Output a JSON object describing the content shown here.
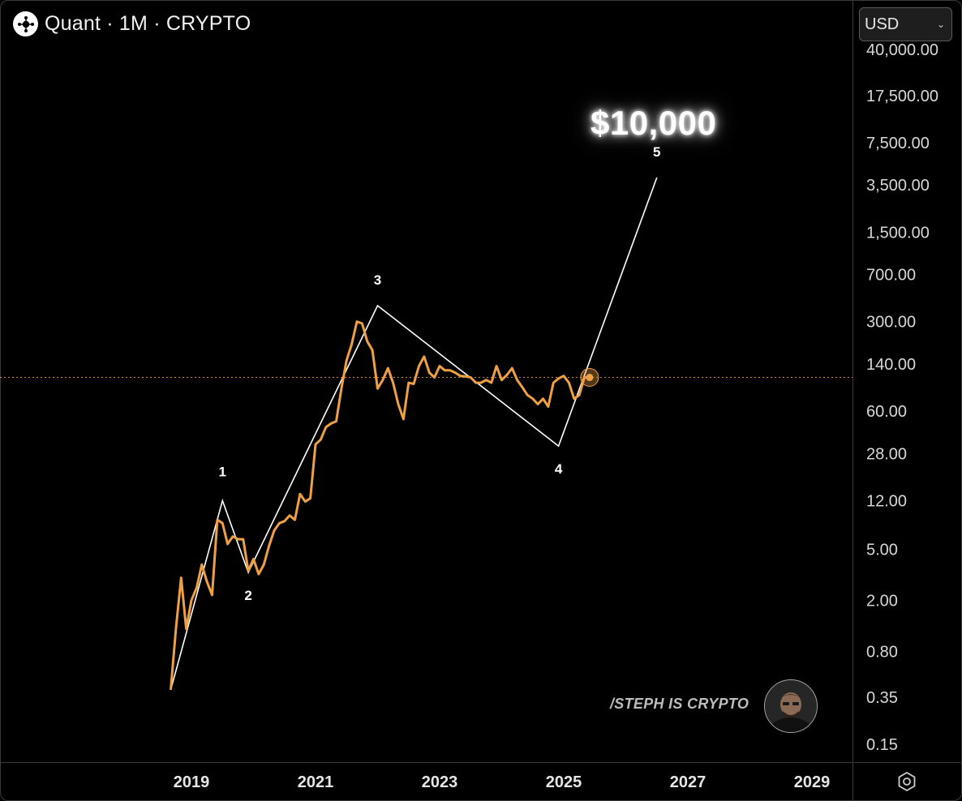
{
  "header": {
    "title": "Quant · 1M · CRYPTO",
    "logo_icon": "quant-logo-icon"
  },
  "currency_select": {
    "value": "USD"
  },
  "watermark": "/STEPH IS CRYPTO",
  "target_label": "$10,000",
  "chart_data": {
    "type": "line",
    "y_scale": "log",
    "x_ticks": [
      "2019",
      "2021",
      "2023",
      "2025",
      "2027",
      "2029"
    ],
    "y_ticks": [
      "40,000.00",
      "17,500.00",
      "7,500.00",
      "3,500.00",
      "1,500.00",
      "700.00",
      "300.00",
      "140.00",
      "60.00",
      "28.00",
      "12.00",
      "5.00",
      "2.00",
      "0.80",
      "0.35",
      "0.15"
    ],
    "current_price_line": 110,
    "series": [
      {
        "color": "#f0a044",
        "points": [
          [
            "2018-09",
            0.4
          ],
          [
            "2018-10",
            1.2
          ],
          [
            "2018-11",
            3.0
          ],
          [
            "2018-12",
            1.2
          ],
          [
            "2019-01",
            2.0
          ],
          [
            "2019-02",
            2.5
          ],
          [
            "2019-03",
            3.8
          ],
          [
            "2019-04",
            2.8
          ],
          [
            "2019-05",
            2.2
          ],
          [
            "2019-06",
            8.5
          ],
          [
            "2019-07",
            8.0
          ],
          [
            "2019-08",
            5.5
          ],
          [
            "2019-09",
            6.3
          ],
          [
            "2019-10",
            6.0
          ],
          [
            "2019-11",
            6.0
          ],
          [
            "2019-12",
            3.4
          ],
          [
            "2020-01",
            4.2
          ],
          [
            "2020-02",
            3.2
          ],
          [
            "2020-03",
            3.8
          ],
          [
            "2020-04",
            5.3
          ],
          [
            "2020-05",
            7.0
          ],
          [
            "2020-06",
            8.0
          ],
          [
            "2020-07",
            8.3
          ],
          [
            "2020-08",
            9.2
          ],
          [
            "2020-09",
            8.5
          ],
          [
            "2020-10",
            13.5
          ],
          [
            "2020-11",
            11.8
          ],
          [
            "2020-12",
            12.5
          ],
          [
            "2021-01",
            33
          ],
          [
            "2021-02",
            36
          ],
          [
            "2021-03",
            45
          ],
          [
            "2021-04",
            48
          ],
          [
            "2021-05",
            50
          ],
          [
            "2021-06",
            90
          ],
          [
            "2021-07",
            150
          ],
          [
            "2021-08",
            200
          ],
          [
            "2021-09",
            300
          ],
          [
            "2021-10",
            290
          ],
          [
            "2021-11",
            210
          ],
          [
            "2021-12",
            180
          ],
          [
            "2022-01",
            90
          ],
          [
            "2022-02",
            105
          ],
          [
            "2022-03",
            130
          ],
          [
            "2022-04",
            100
          ],
          [
            "2022-05",
            68
          ],
          [
            "2022-06",
            52
          ],
          [
            "2022-07",
            100
          ],
          [
            "2022-08",
            98
          ],
          [
            "2022-09",
            135
          ],
          [
            "2022-10",
            160
          ],
          [
            "2022-11",
            120
          ],
          [
            "2022-12",
            110
          ],
          [
            "2023-01",
            135
          ],
          [
            "2023-02",
            125
          ],
          [
            "2023-03",
            125
          ],
          [
            "2023-04",
            120
          ],
          [
            "2023-05",
            113
          ],
          [
            "2023-06",
            112
          ],
          [
            "2023-07",
            110
          ],
          [
            "2023-08",
            100
          ],
          [
            "2023-09",
            100
          ],
          [
            "2023-10",
            105
          ],
          [
            "2023-11",
            100
          ],
          [
            "2023-12",
            135
          ],
          [
            "2024-01",
            105
          ],
          [
            "2024-02",
            115
          ],
          [
            "2024-03",
            130
          ],
          [
            "2024-04",
            105
          ],
          [
            "2024-05",
            92
          ],
          [
            "2024-06",
            80
          ],
          [
            "2024-07",
            75
          ],
          [
            "2024-08",
            68
          ],
          [
            "2024-09",
            75
          ],
          [
            "2024-10",
            65
          ],
          [
            "2024-11",
            100
          ],
          [
            "2024-12",
            108
          ],
          [
            "2025-01",
            113
          ],
          [
            "2025-02",
            100
          ],
          [
            "2025-03",
            75
          ],
          [
            "2025-04",
            80
          ],
          [
            "2025-05",
            110
          ],
          [
            "2025-06",
            110
          ]
        ]
      },
      {
        "color": "#ffffff",
        "points": [
          [
            "2018-09",
            0.4
          ],
          [
            "2019-07",
            12
          ],
          [
            "2019-12",
            3.3
          ],
          [
            "2022-01",
            400
          ],
          [
            "2024-12",
            32
          ],
          [
            "2026-07",
            4000
          ]
        ]
      }
    ],
    "annotations": [
      {
        "label": "1",
        "x": "2019-07"
      },
      {
        "label": "2",
        "x": "2019-12"
      },
      {
        "label": "3",
        "x": "2022-01"
      },
      {
        "label": "4",
        "x": "2024-12"
      },
      {
        "label": "5",
        "x": "2026-07"
      }
    ]
  }
}
